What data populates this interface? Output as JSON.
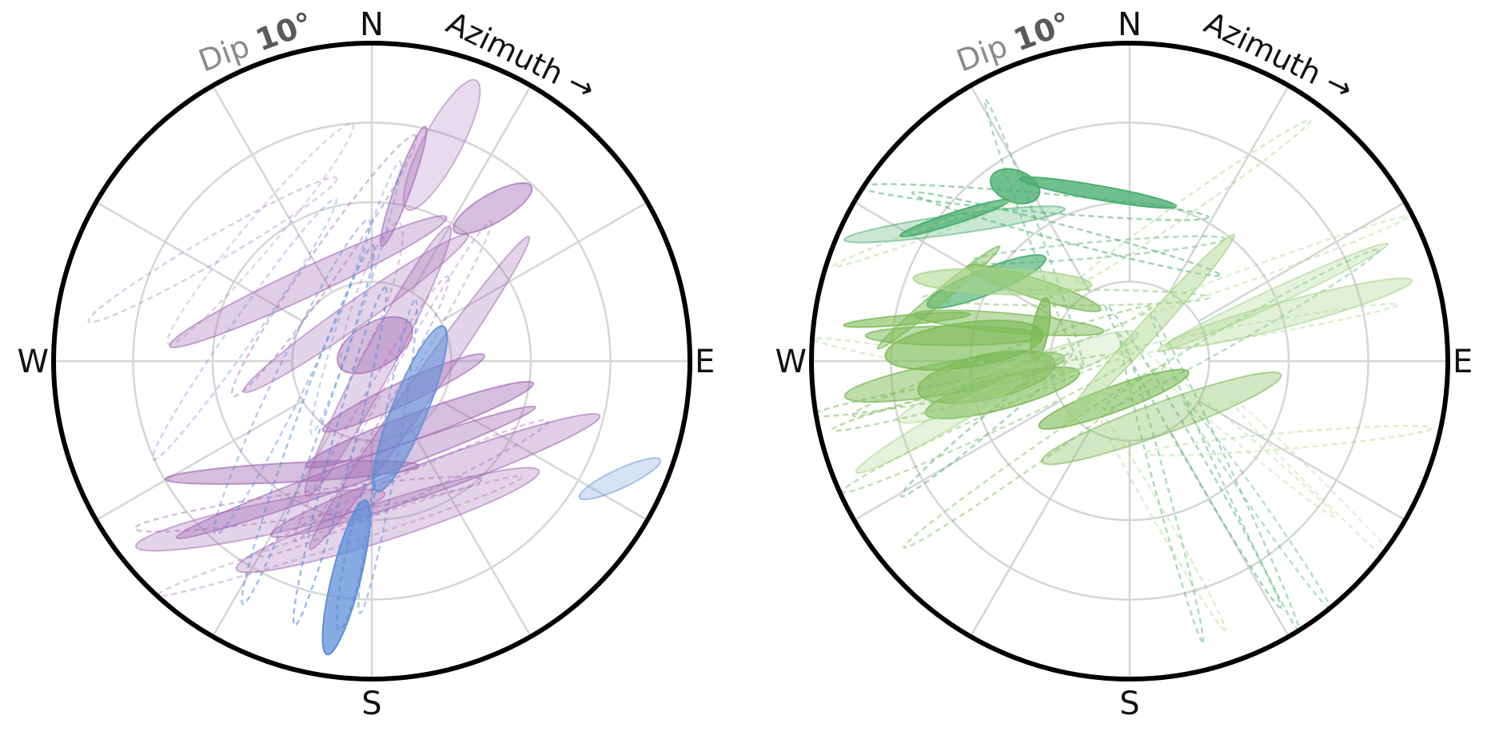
{
  "chart_data": [
    {
      "type": "stereonet",
      "compass": {
        "north": "N",
        "south": "S",
        "east": "E",
        "west": "W"
      },
      "dip_label": "Dip",
      "dip_value": "10°",
      "azimuth_label": "Azimuth",
      "azimuth_arrow": "→",
      "grid": true,
      "palette": [
        "#a56fb6",
        "#5f8fd8"
      ],
      "series": [
        {
          "color": "#a56fb6",
          "ellipses": [
            {
              "x": 38,
              "y": 48,
              "rx": 14,
              "ry": 4.5,
              "rot": 30,
              "opacity": 0.45,
              "style": "solid"
            },
            {
              "x": 22,
              "y": 68,
              "rx": 23,
              "ry": 6,
              "rot": 62,
              "opacity": 0.25,
              "style": "solid"
            },
            {
              "x": -20,
              "y": 25,
              "rx": 48,
              "ry": 4.5,
              "rot": 25,
              "opacity": 0.35,
              "style": "solid"
            },
            {
              "x": -5,
              "y": 15,
              "rx": 43,
              "ry": 4,
              "rot": 35,
              "opacity": 0.3,
              "style": "solid"
            },
            {
              "x": 10,
              "y": 55,
              "rx": 20,
              "ry": 2.5,
              "rot": 70,
              "opacity": 0.4,
              "style": "solid"
            },
            {
              "x": 1,
              "y": 5,
              "rx": 13,
              "ry": 7,
              "rot": 30,
              "opacity": 0.45,
              "style": "solid"
            },
            {
              "x": 2,
              "y": 0,
              "rx": 48,
              "ry": 5,
              "rot": 62,
              "opacity": 0.3,
              "style": "solid"
            },
            {
              "x": -5,
              "y": -35,
              "rx": 60,
              "ry": 3.5,
              "rot": 20,
              "opacity": 0.4,
              "style": "solid"
            },
            {
              "x": 10,
              "y": -10,
              "rx": 28,
              "ry": 3.5,
              "rot": 25,
              "opacity": 0.4,
              "style": "solid"
            },
            {
              "x": 15,
              "y": -20,
              "rx": 38,
              "ry": 4,
              "rot": 20,
              "opacity": 0.45,
              "style": "solid"
            },
            {
              "x": -25,
              "y": -35,
              "rx": 40,
              "ry": 3,
              "rot": 3,
              "opacity": 0.45,
              "style": "solid"
            },
            {
              "x": 20,
              "y": -36,
              "rx": 55,
              "ry": 5,
              "rot": 20,
              "opacity": 0.35,
              "style": "solid"
            },
            {
              "x": 5,
              "y": -50,
              "rx": 50,
              "ry": 6,
              "rot": 18,
              "opacity": 0.3,
              "style": "solid"
            },
            {
              "x": -35,
              "y": -50,
              "rx": 40,
              "ry": 5,
              "rot": 12,
              "opacity": 0.3,
              "style": "solid"
            },
            {
              "x": 15,
              "y": -10,
              "rx": 60,
              "ry": 4,
              "rot": 55,
              "opacity": 0.3,
              "style": "solid"
            },
            {
              "x": -35,
              "y": 40,
              "rx": 45,
              "ry": 5,
              "rot": 50,
              "opacity": 0.3,
              "style": "dashed"
            },
            {
              "x": -15,
              "y": 30,
              "rx": 50,
              "ry": 5,
              "rot": 55,
              "opacity": 0.45,
              "style": "dashed"
            },
            {
              "x": 0,
              "y": -15,
              "rx": 48,
              "ry": 4,
              "rot": 60,
              "opacity": 0.4,
              "style": "dashed"
            },
            {
              "x": -20,
              "y": -45,
              "rx": 55,
              "ry": 4,
              "rot": 8,
              "opacity": 0.45,
              "style": "dashed"
            },
            {
              "x": 10,
              "y": -40,
              "rx": 50,
              "ry": 4,
              "rot": 25,
              "opacity": 0.4,
              "style": "dashed"
            },
            {
              "x": -10,
              "y": -55,
              "rx": 60,
              "ry": 3,
              "rot": 18,
              "opacity": 0.35,
              "style": "dashed"
            },
            {
              "x": 15,
              "y": 5,
              "rx": 45,
              "ry": 3,
              "rot": 60,
              "opacity": 0.35,
              "style": "dashed"
            },
            {
              "x": -50,
              "y": 35,
              "rx": 45,
              "ry": 4,
              "rot": 30,
              "opacity": 0.35,
              "style": "dashed"
            },
            {
              "x": 0,
              "y": 20,
              "rx": 25,
              "ry": 5,
              "rot": 70,
              "opacity": 0.35,
              "style": "dashed"
            }
          ]
        },
        {
          "color": "#5f8fd8",
          "ellipses": [
            {
              "x": 12,
              "y": -15,
              "rx": 28,
              "ry": 5.5,
              "rot": 68,
              "opacity": 0.6,
              "style": "solid"
            },
            {
              "x": -8,
              "y": -68,
              "rx": 25,
              "ry": 4.5,
              "rot": 76,
              "opacity": 0.75,
              "style": "solid"
            },
            {
              "x": 78,
              "y": -37,
              "rx": 14,
              "ry": 3,
              "rot": 25,
              "opacity": 0.25,
              "style": "solid"
            },
            {
              "x": -20,
              "y": -20,
              "rx": 60,
              "ry": 4,
              "rot": 70,
              "opacity": 0.55,
              "style": "dashed"
            },
            {
              "x": -25,
              "y": -5,
              "rx": 55,
              "ry": 5,
              "rot": 64,
              "opacity": 0.45,
              "style": "dashed"
            },
            {
              "x": -10,
              "y": -30,
              "rx": 55,
              "ry": 3.5,
              "rot": 75,
              "opacity": 0.6,
              "style": "dashed"
            },
            {
              "x": 5,
              "y": -30,
              "rx": 50,
              "ry": 3,
              "rot": 80,
              "opacity": 0.5,
              "style": "dashed"
            },
            {
              "x": -40,
              "y": 10,
              "rx": 50,
              "ry": 4,
              "rot": 55,
              "opacity": 0.35,
              "style": "dashed"
            },
            {
              "x": -5,
              "y": 20,
              "rx": 45,
              "ry": 3,
              "rot": 72,
              "opacity": 0.35,
              "style": "dashed"
            },
            {
              "x": -5,
              "y": -60,
              "rx": 25,
              "ry": 3,
              "rot": 78,
              "opacity": 0.7,
              "style": "dashed"
            }
          ]
        }
      ]
    },
    {
      "type": "stereonet",
      "compass": {
        "north": "N",
        "south": "S",
        "east": "E",
        "west": "W"
      },
      "dip_label": "Dip",
      "dip_value": "10°",
      "azimuth_label": "Azimuth",
      "azimuth_arrow": "→",
      "grid": true,
      "palette": [
        "#4caf72",
        "#7dbb57",
        "#a8d58a"
      ],
      "series": [
        {
          "color": "#4caf72",
          "ellipses": [
            {
              "x": -36,
              "y": 55,
              "rx": 8,
              "ry": 5,
              "rot": -20,
              "opacity": 0.8,
              "style": "solid"
            },
            {
              "x": -10,
              "y": 53,
              "rx": 25,
              "ry": 2.2,
              "rot": -10,
              "opacity": 0.8,
              "style": "solid"
            },
            {
              "x": -55,
              "y": 45,
              "rx": 18,
              "ry": 1.8,
              "rot": 18,
              "opacity": 0.75,
              "style": "solid"
            },
            {
              "x": -45,
              "y": 25,
              "rx": 20,
              "ry": 4,
              "rot": 22,
              "opacity": 0.65,
              "style": "solid"
            },
            {
              "x": -55,
              "y": 43,
              "rx": 35,
              "ry": 3,
              "rot": 8,
              "opacity": 0.3,
              "style": "solid"
            },
            {
              "x": -30,
              "y": 50,
              "rx": 55,
              "ry": 3,
              "rot": -5,
              "opacity": 0.55,
              "style": "dashed"
            },
            {
              "x": -20,
              "y": 40,
              "rx": 50,
              "ry": 2.5,
              "rot": -15,
              "opacity": 0.55,
              "style": "dashed"
            },
            {
              "x": 20,
              "y": -30,
              "rx": 55,
              "ry": 2.5,
              "rot": -60,
              "opacity": 0.5,
              "style": "dashed"
            },
            {
              "x": 30,
              "y": -35,
              "rx": 55,
              "ry": 2,
              "rot": -65,
              "opacity": 0.45,
              "style": "dashed"
            },
            {
              "x": 10,
              "y": -40,
              "rx": 50,
              "ry": 2,
              "rot": -75,
              "opacity": 0.45,
              "style": "dashed"
            },
            {
              "x": -45,
              "y": -20,
              "rx": 35,
              "ry": 2.5,
              "rot": 40,
              "opacity": 0.5,
              "style": "dashed"
            },
            {
              "x": -10,
              "y": 35,
              "rx": 40,
              "ry": 2.5,
              "rot": 5,
              "opacity": 0.45,
              "style": "dashed"
            },
            {
              "x": -30,
              "y": 40,
              "rx": 45,
              "ry": 2,
              "rot": -70,
              "opacity": 0.45,
              "style": "dashed"
            },
            {
              "x": 40,
              "y": -45,
              "rx": 40,
              "ry": 2,
              "rot": -55,
              "opacity": 0.4,
              "style": "dashed"
            },
            {
              "x": 35,
              "y": 10,
              "rx": 50,
              "ry": 3,
              "rot": 30,
              "opacity": 0.4,
              "style": "dashed"
            }
          ]
        },
        {
          "color": "#7dbb57",
          "ellipses": [
            {
              "x": -52,
              "y": 5,
              "rx": 25,
              "ry": 7,
              "rot": 8,
              "opacity": 0.65,
              "style": "solid"
            },
            {
              "x": -45,
              "y": -5,
              "rx": 22,
              "ry": 7,
              "rot": 12,
              "opacity": 0.6,
              "style": "solid"
            },
            {
              "x": -40,
              "y": -10,
              "rx": 25,
              "ry": 5,
              "rot": 15,
              "opacity": 0.6,
              "style": "solid"
            },
            {
              "x": -55,
              "y": -5,
              "rx": 35,
              "ry": 5,
              "rot": 10,
              "opacity": 0.5,
              "style": "solid"
            },
            {
              "x": -38,
              "y": 12,
              "rx": 30,
              "ry": 3,
              "rot": -5,
              "opacity": 0.5,
              "style": "solid"
            },
            {
              "x": -55,
              "y": 8,
              "rx": 28,
              "ry": 3,
              "rot": 0,
              "opacity": 0.55,
              "style": "solid"
            },
            {
              "x": -30,
              "y": 23,
              "rx": 22,
              "ry": 3,
              "rot": -18,
              "opacity": 0.55,
              "style": "solid"
            },
            {
              "x": -28,
              "y": 10,
              "rx": 10,
              "ry": 2.5,
              "rot": 80,
              "opacity": 0.7,
              "style": "solid"
            },
            {
              "x": -5,
              "y": -12,
              "rx": 25,
              "ry": 4,
              "rot": 20,
              "opacity": 0.6,
              "style": "solid"
            },
            {
              "x": 10,
              "y": -18,
              "rx": 40,
              "ry": 5,
              "rot": 20,
              "opacity": 0.35,
              "style": "solid"
            },
            {
              "x": -60,
              "y": 20,
              "rx": 25,
              "ry": 2,
              "rot": 40,
              "opacity": 0.45,
              "style": "solid"
            },
            {
              "x": -70,
              "y": 13,
              "rx": 20,
              "ry": 1.5,
              "rot": 5,
              "opacity": 0.6,
              "style": "solid"
            },
            {
              "x": -40,
              "y": 0,
              "rx": 50,
              "ry": 3,
              "rot": 20,
              "opacity": 0.5,
              "style": "dashed"
            },
            {
              "x": -50,
              "y": -10,
              "rx": 45,
              "ry": 2.5,
              "rot": 15,
              "opacity": 0.5,
              "style": "dashed"
            },
            {
              "x": -45,
              "y": -20,
              "rx": 50,
              "ry": 3,
              "rot": 25,
              "opacity": 0.45,
              "style": "dashed"
            },
            {
              "x": -30,
              "y": -30,
              "rx": 50,
              "ry": 2.5,
              "rot": 35,
              "opacity": 0.45,
              "style": "dashed"
            },
            {
              "x": -60,
              "y": -10,
              "rx": 40,
              "ry": 2.5,
              "rot": 10,
              "opacity": 0.55,
              "style": "dashed"
            },
            {
              "x": -20,
              "y": 20,
              "rx": 45,
              "ry": 2.5,
              "rot": 0,
              "opacity": 0.45,
              "style": "dashed"
            }
          ]
        },
        {
          "color": "#a8d58a",
          "ellipses": [
            {
              "x": -40,
              "y": 25,
              "rx": 28,
              "ry": 4,
              "rot": -2,
              "opacity": 0.55,
              "style": "solid"
            },
            {
              "x": 6,
              "y": 10,
              "rx": 40,
              "ry": 3,
              "rot": 48,
              "opacity": 0.45,
              "style": "solid"
            },
            {
              "x": 50,
              "y": 15,
              "rx": 40,
              "ry": 4,
              "rot": 15,
              "opacity": 0.35,
              "style": "solid"
            },
            {
              "x": -35,
              "y": -5,
              "rx": 40,
              "ry": 5,
              "rot": 20,
              "opacity": 0.25,
              "style": "solid"
            },
            {
              "x": 45,
              "y": 20,
              "rx": 40,
              "ry": 2.5,
              "rot": 25,
              "opacity": 0.3,
              "style": "solid"
            },
            {
              "x": -60,
              "y": -20,
              "rx": 30,
              "ry": 3,
              "rot": 30,
              "opacity": 0.3,
              "style": "solid"
            },
            {
              "x": 45,
              "y": 30,
              "rx": 45,
              "ry": 2,
              "rot": 20,
              "opacity": 0.4,
              "style": "dashed"
            },
            {
              "x": 40,
              "y": 10,
              "rx": 45,
              "ry": 2,
              "rot": 10,
              "opacity": 0.4,
              "style": "dashed"
            },
            {
              "x": 30,
              "y": -20,
              "rx": 45,
              "ry": 2,
              "rot": -40,
              "opacity": 0.35,
              "style": "dashed"
            },
            {
              "x": 50,
              "y": -25,
              "rx": 45,
              "ry": 2.5,
              "rot": 5,
              "opacity": 0.4,
              "style": "dashed"
            },
            {
              "x": -60,
              "y": 0,
              "rx": 40,
              "ry": 2,
              "rot": -10,
              "opacity": 0.4,
              "style": "dashed"
            },
            {
              "x": 20,
              "y": 50,
              "rx": 45,
              "ry": 2.5,
              "rot": 35,
              "opacity": 0.45,
              "style": "dashed"
            },
            {
              "x": -65,
              "y": 40,
              "rx": 30,
              "ry": 1.5,
              "rot": 20,
              "opacity": 0.45,
              "style": "dashed"
            },
            {
              "x": 10,
              "y": -50,
              "rx": 40,
              "ry": 2,
              "rot": -60,
              "opacity": 0.4,
              "style": "dashed"
            },
            {
              "x": 60,
              "y": -40,
              "rx": 40,
              "ry": 2,
              "rot": -45,
              "opacity": 0.35,
              "style": "dashed"
            }
          ]
        }
      ]
    }
  ]
}
